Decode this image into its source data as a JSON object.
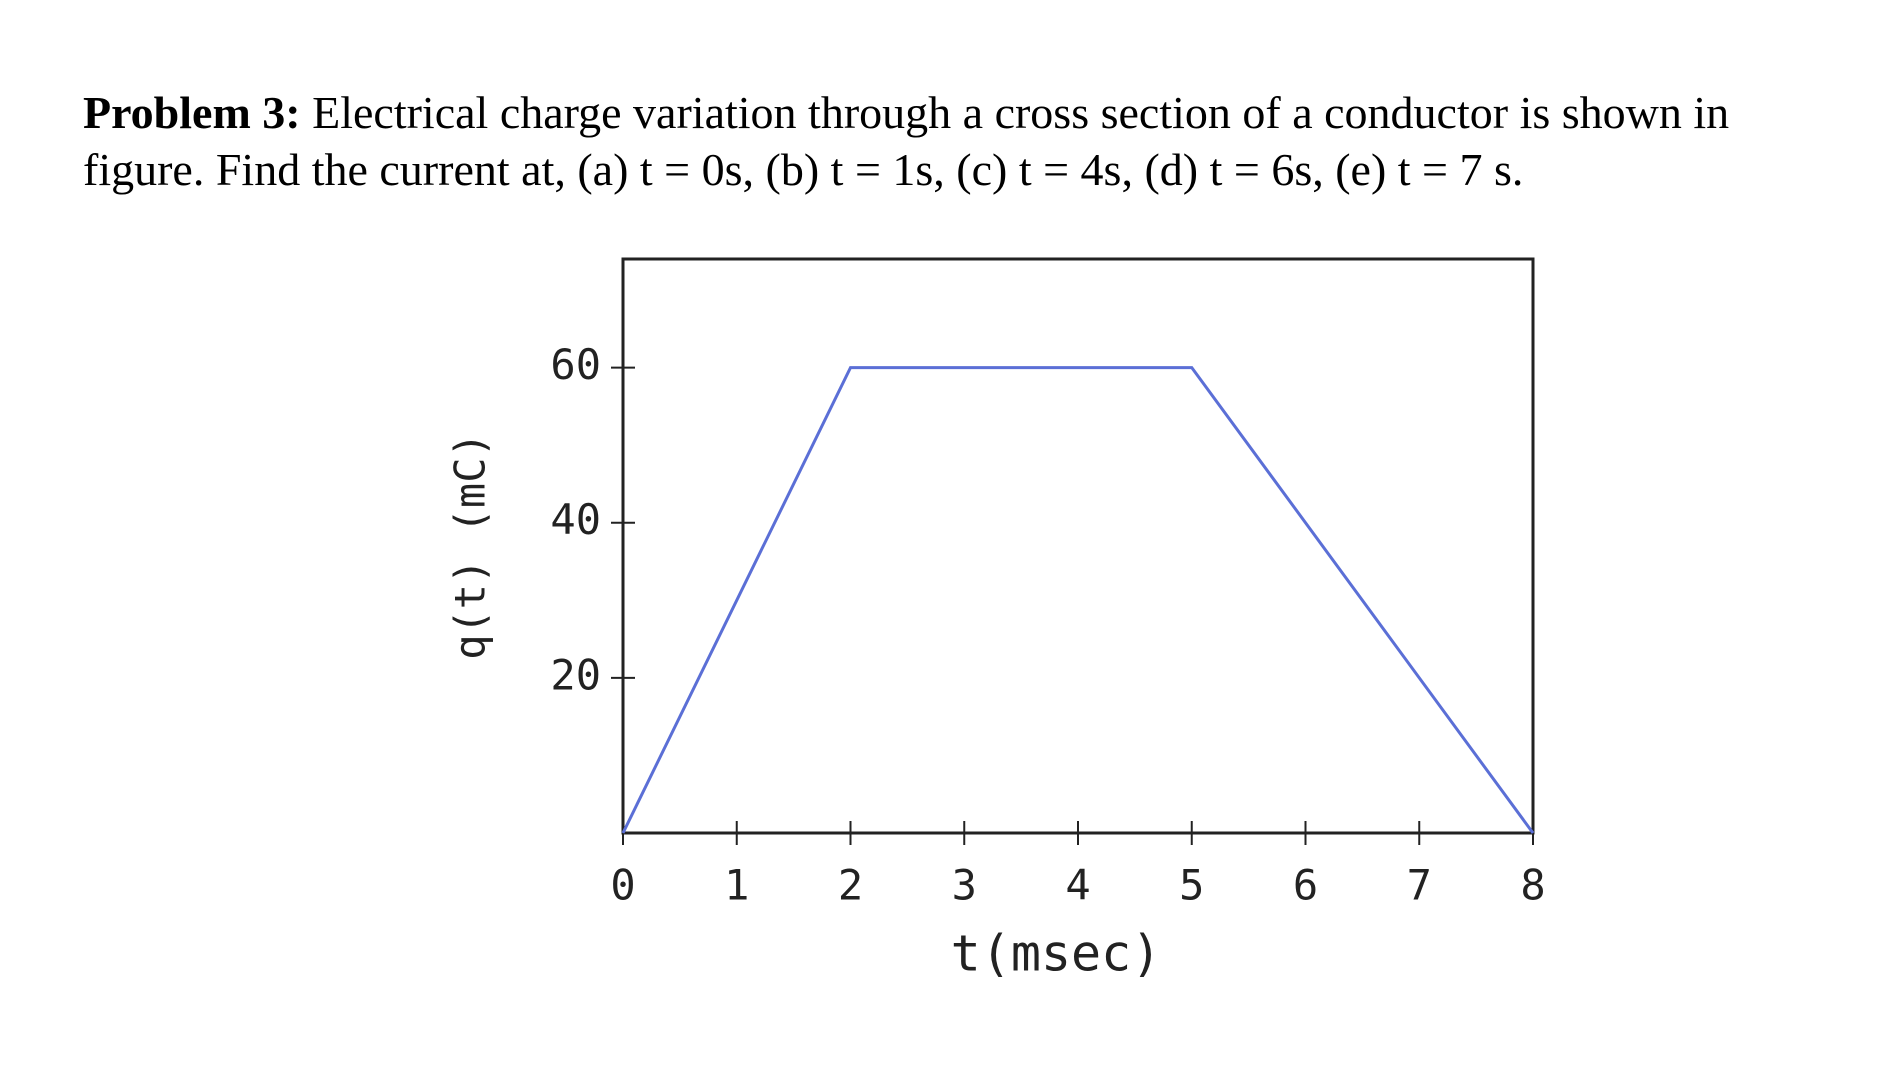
{
  "problem": {
    "label": "Problem 3:",
    "text": "Electrical charge variation through a cross section of a conductor is shown in figure. Find the current at, (a) t = 0s, (b) t = 1s, (c) t = 4s, (d) t = 6s, (e) t = 7 s."
  },
  "chart_data": {
    "type": "line",
    "x_label": "t(msec)",
    "y_label": "q(t) (mC)",
    "x": [
      0,
      2,
      5,
      8
    ],
    "series": [
      {
        "name": "q(t)",
        "color": "#5b6fd6",
        "values": [
          0,
          60,
          60,
          0
        ]
      }
    ],
    "xlim": [
      0,
      8
    ],
    "xticks": [
      0,
      1,
      2,
      3,
      4,
      5,
      6,
      7,
      8
    ],
    "ylim": [
      0,
      74
    ],
    "yticks": [
      20,
      40,
      60
    ]
  }
}
